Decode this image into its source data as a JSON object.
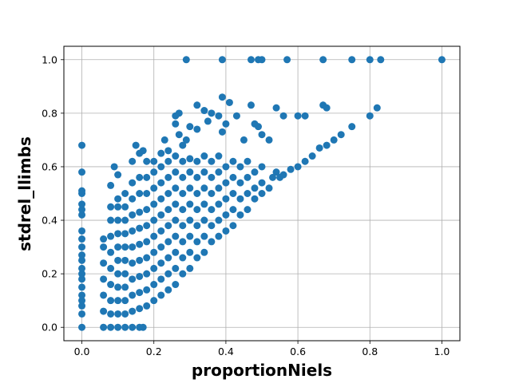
{
  "chart_data": {
    "type": "scatter",
    "title": "",
    "xlabel": "proportionNiels",
    "ylabel": "stdrel_llimbs",
    "xlim": [
      -0.05,
      1.05
    ],
    "ylim": [
      -0.05,
      1.05
    ],
    "xticks": [
      {
        "value": 0.0,
        "label": "0.0"
      },
      {
        "value": 0.2,
        "label": "0.2"
      },
      {
        "value": 0.4,
        "label": "0.4"
      },
      {
        "value": 0.6,
        "label": "0.6"
      },
      {
        "value": 0.8,
        "label": "0.8"
      },
      {
        "value": 1.0,
        "label": "1.0"
      }
    ],
    "yticks": [
      {
        "value": 0.0,
        "label": "0.0"
      },
      {
        "value": 0.2,
        "label": "0.2"
      },
      {
        "value": 0.4,
        "label": "0.4"
      },
      {
        "value": 0.6,
        "label": "0.6"
      },
      {
        "value": 0.8,
        "label": "0.8"
      },
      {
        "value": 1.0,
        "label": "1.0"
      }
    ],
    "grid": true,
    "legend": false,
    "marker_color": "#1f77b4",
    "series": [
      {
        "points": [
          [
            0.0,
            0.0
          ],
          [
            0.0,
            0.05
          ],
          [
            0.0,
            0.08
          ],
          [
            0.0,
            0.1
          ],
          [
            0.0,
            0.12
          ],
          [
            0.0,
            0.15
          ],
          [
            0.0,
            0.18
          ],
          [
            0.0,
            0.2
          ],
          [
            0.0,
            0.22
          ],
          [
            0.0,
            0.25
          ],
          [
            0.0,
            0.27
          ],
          [
            0.0,
            0.3
          ],
          [
            0.0,
            0.33
          ],
          [
            0.0,
            0.36
          ],
          [
            0.0,
            0.42
          ],
          [
            0.0,
            0.44
          ],
          [
            0.0,
            0.46
          ],
          [
            0.0,
            0.5
          ],
          [
            0.0,
            0.51
          ],
          [
            0.0,
            0.58
          ],
          [
            0.0,
            0.68
          ],
          [
            0.06,
            0.0
          ],
          [
            0.08,
            0.0
          ],
          [
            0.1,
            0.0
          ],
          [
            0.12,
            0.0
          ],
          [
            0.14,
            0.0
          ],
          [
            0.16,
            0.0
          ],
          [
            0.17,
            0.0
          ],
          [
            0.06,
            0.06
          ],
          [
            0.06,
            0.12
          ],
          [
            0.06,
            0.18
          ],
          [
            0.06,
            0.24
          ],
          [
            0.06,
            0.3
          ],
          [
            0.06,
            0.33
          ],
          [
            0.08,
            0.05
          ],
          [
            0.08,
            0.1
          ],
          [
            0.08,
            0.16
          ],
          [
            0.08,
            0.22
          ],
          [
            0.08,
            0.28
          ],
          [
            0.08,
            0.34
          ],
          [
            0.08,
            0.4
          ],
          [
            0.08,
            0.45
          ],
          [
            0.08,
            0.53
          ],
          [
            0.1,
            0.05
          ],
          [
            0.1,
            0.1
          ],
          [
            0.1,
            0.15
          ],
          [
            0.1,
            0.2
          ],
          [
            0.1,
            0.25
          ],
          [
            0.1,
            0.3
          ],
          [
            0.1,
            0.35
          ],
          [
            0.1,
            0.4
          ],
          [
            0.1,
            0.45
          ],
          [
            0.1,
            0.48
          ],
          [
            0.1,
            0.57
          ],
          [
            0.09,
            0.6
          ],
          [
            0.12,
            0.05
          ],
          [
            0.12,
            0.1
          ],
          [
            0.12,
            0.15
          ],
          [
            0.12,
            0.2
          ],
          [
            0.12,
            0.25
          ],
          [
            0.12,
            0.3
          ],
          [
            0.12,
            0.35
          ],
          [
            0.12,
            0.4
          ],
          [
            0.12,
            0.45
          ],
          [
            0.12,
            0.5
          ],
          [
            0.14,
            0.06
          ],
          [
            0.14,
            0.12
          ],
          [
            0.14,
            0.18
          ],
          [
            0.14,
            0.24
          ],
          [
            0.14,
            0.3
          ],
          [
            0.14,
            0.36
          ],
          [
            0.14,
            0.42
          ],
          [
            0.14,
            0.48
          ],
          [
            0.14,
            0.54
          ],
          [
            0.14,
            0.62
          ],
          [
            0.16,
            0.07
          ],
          [
            0.16,
            0.13
          ],
          [
            0.16,
            0.19
          ],
          [
            0.16,
            0.25
          ],
          [
            0.16,
            0.31
          ],
          [
            0.16,
            0.37
          ],
          [
            0.16,
            0.43
          ],
          [
            0.16,
            0.5
          ],
          [
            0.16,
            0.56
          ],
          [
            0.16,
            0.65
          ],
          [
            0.15,
            0.68
          ],
          [
            0.17,
            0.66
          ],
          [
            0.18,
            0.62
          ],
          [
            0.18,
            0.08
          ],
          [
            0.18,
            0.14
          ],
          [
            0.18,
            0.2
          ],
          [
            0.18,
            0.26
          ],
          [
            0.18,
            0.32
          ],
          [
            0.18,
            0.38
          ],
          [
            0.18,
            0.44
          ],
          [
            0.18,
            0.5
          ],
          [
            0.18,
            0.56
          ],
          [
            0.2,
            0.1
          ],
          [
            0.2,
            0.16
          ],
          [
            0.2,
            0.22
          ],
          [
            0.2,
            0.28
          ],
          [
            0.2,
            0.34
          ],
          [
            0.2,
            0.4
          ],
          [
            0.2,
            0.46
          ],
          [
            0.2,
            0.52
          ],
          [
            0.2,
            0.58
          ],
          [
            0.2,
            0.62
          ],
          [
            0.22,
            0.12
          ],
          [
            0.22,
            0.18
          ],
          [
            0.22,
            0.24
          ],
          [
            0.22,
            0.3
          ],
          [
            0.22,
            0.36
          ],
          [
            0.22,
            0.42
          ],
          [
            0.22,
            0.48
          ],
          [
            0.22,
            0.54
          ],
          [
            0.22,
            0.6
          ],
          [
            0.22,
            0.65
          ],
          [
            0.23,
            0.7
          ],
          [
            0.24,
            0.14
          ],
          [
            0.24,
            0.2
          ],
          [
            0.24,
            0.26
          ],
          [
            0.24,
            0.32
          ],
          [
            0.24,
            0.38
          ],
          [
            0.24,
            0.44
          ],
          [
            0.24,
            0.5
          ],
          [
            0.24,
            0.56
          ],
          [
            0.24,
            0.62
          ],
          [
            0.24,
            0.66
          ],
          [
            0.26,
            0.16
          ],
          [
            0.26,
            0.22
          ],
          [
            0.26,
            0.28
          ],
          [
            0.26,
            0.34
          ],
          [
            0.26,
            0.4
          ],
          [
            0.26,
            0.46
          ],
          [
            0.26,
            0.52
          ],
          [
            0.26,
            0.58
          ],
          [
            0.26,
            0.64
          ],
          [
            0.28,
            0.2
          ],
          [
            0.28,
            0.26
          ],
          [
            0.28,
            0.32
          ],
          [
            0.28,
            0.38
          ],
          [
            0.28,
            0.44
          ],
          [
            0.28,
            0.5
          ],
          [
            0.28,
            0.56
          ],
          [
            0.28,
            0.62
          ],
          [
            0.28,
            0.68
          ],
          [
            0.3,
            0.22
          ],
          [
            0.3,
            0.28
          ],
          [
            0.3,
            0.34
          ],
          [
            0.3,
            0.4
          ],
          [
            0.3,
            0.46
          ],
          [
            0.3,
            0.52
          ],
          [
            0.3,
            0.58
          ],
          [
            0.3,
            0.63
          ],
          [
            0.32,
            0.26
          ],
          [
            0.32,
            0.32
          ],
          [
            0.32,
            0.38
          ],
          [
            0.32,
            0.44
          ],
          [
            0.32,
            0.5
          ],
          [
            0.32,
            0.56
          ],
          [
            0.32,
            0.62
          ],
          [
            0.34,
            0.28
          ],
          [
            0.34,
            0.34
          ],
          [
            0.34,
            0.4
          ],
          [
            0.34,
            0.46
          ],
          [
            0.34,
            0.52
          ],
          [
            0.34,
            0.58
          ],
          [
            0.34,
            0.64
          ],
          [
            0.36,
            0.32
          ],
          [
            0.36,
            0.38
          ],
          [
            0.36,
            0.44
          ],
          [
            0.36,
            0.5
          ],
          [
            0.36,
            0.56
          ],
          [
            0.36,
            0.62
          ],
          [
            0.38,
            0.34
          ],
          [
            0.38,
            0.4
          ],
          [
            0.38,
            0.46
          ],
          [
            0.38,
            0.52
          ],
          [
            0.38,
            0.58
          ],
          [
            0.38,
            0.64
          ],
          [
            0.4,
            0.36
          ],
          [
            0.4,
            0.42
          ],
          [
            0.4,
            0.48
          ],
          [
            0.4,
            0.54
          ],
          [
            0.4,
            0.6
          ],
          [
            0.42,
            0.38
          ],
          [
            0.42,
            0.44
          ],
          [
            0.42,
            0.5
          ],
          [
            0.42,
            0.56
          ],
          [
            0.42,
            0.62
          ],
          [
            0.44,
            0.42
          ],
          [
            0.44,
            0.48
          ],
          [
            0.44,
            0.54
          ],
          [
            0.44,
            0.6
          ],
          [
            0.46,
            0.44
          ],
          [
            0.46,
            0.5
          ],
          [
            0.46,
            0.56
          ],
          [
            0.46,
            0.62
          ],
          [
            0.48,
            0.48
          ],
          [
            0.48,
            0.52
          ],
          [
            0.48,
            0.58
          ],
          [
            0.5,
            0.5
          ],
          [
            0.5,
            0.54
          ],
          [
            0.5,
            0.6
          ],
          [
            0.52,
            0.52
          ],
          [
            0.53,
            0.56
          ],
          [
            0.54,
            0.58
          ],
          [
            0.55,
            0.56
          ],
          [
            0.56,
            0.57
          ],
          [
            0.58,
            0.59
          ],
          [
            0.6,
            0.6
          ],
          [
            0.62,
            0.62
          ],
          [
            0.64,
            0.64
          ],
          [
            0.66,
            0.67
          ],
          [
            0.68,
            0.68
          ],
          [
            0.7,
            0.7
          ],
          [
            0.72,
            0.72
          ],
          [
            0.75,
            0.75
          ],
          [
            0.8,
            0.79
          ],
          [
            0.82,
            0.82
          ],
          [
            0.27,
            0.8
          ],
          [
            0.26,
            0.79
          ],
          [
            0.3,
            0.75
          ],
          [
            0.32,
            0.74
          ],
          [
            0.32,
            0.83
          ],
          [
            0.34,
            0.81
          ],
          [
            0.35,
            0.77
          ],
          [
            0.36,
            0.8
          ],
          [
            0.38,
            0.79
          ],
          [
            0.39,
            0.86
          ],
          [
            0.41,
            0.84
          ],
          [
            0.43,
            0.79
          ],
          [
            0.47,
            0.83
          ],
          [
            0.49,
            0.75
          ],
          [
            0.48,
            0.76
          ],
          [
            0.54,
            0.82
          ],
          [
            0.56,
            0.79
          ],
          [
            0.6,
            0.79
          ],
          [
            0.62,
            0.79
          ],
          [
            0.67,
            0.83
          ],
          [
            0.68,
            0.82
          ],
          [
            0.26,
            0.76
          ],
          [
            0.27,
            0.72
          ],
          [
            0.29,
            0.7
          ],
          [
            0.39,
            0.73
          ],
          [
            0.4,
            0.76
          ],
          [
            0.45,
            0.7
          ],
          [
            0.5,
            0.72
          ],
          [
            0.52,
            0.7
          ],
          [
            0.29,
            1.0
          ],
          [
            0.39,
            1.0
          ],
          [
            0.47,
            1.0
          ],
          [
            0.49,
            1.0
          ],
          [
            0.5,
            1.0
          ],
          [
            0.57,
            1.0
          ],
          [
            0.67,
            1.0
          ],
          [
            0.75,
            1.0
          ],
          [
            0.8,
            1.0
          ],
          [
            0.83,
            1.0
          ],
          [
            1.0,
            1.0
          ]
        ]
      }
    ]
  }
}
